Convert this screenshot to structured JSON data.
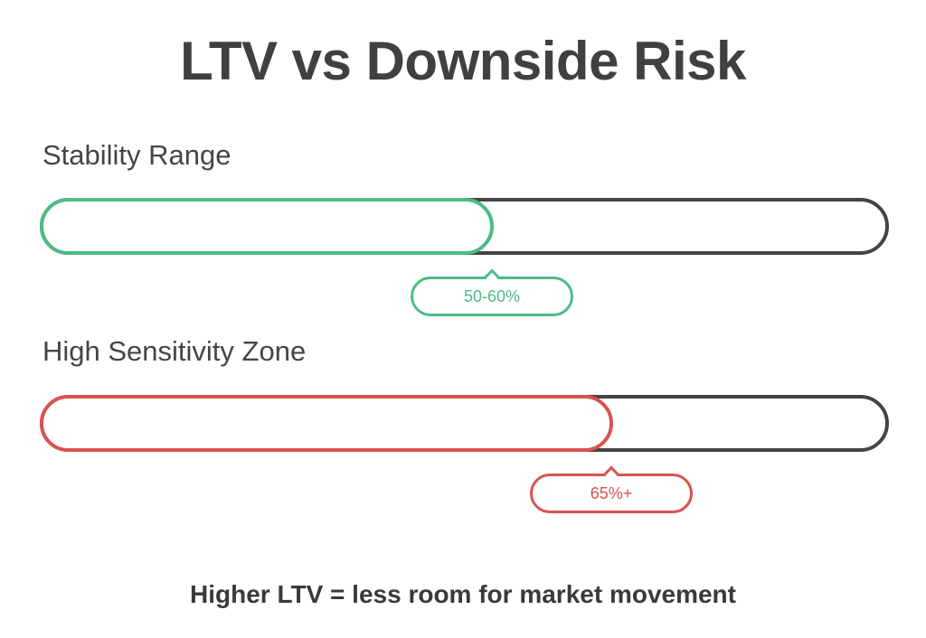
{
  "title": "LTV vs Downside Risk",
  "bars": [
    {
      "label": "Stability Range",
      "callout": "50-60%",
      "fill_fraction": 0.535,
      "color": "#4cbb87"
    },
    {
      "label": "High Sensitivity Zone",
      "callout": "65%+",
      "fill_fraction": 0.675,
      "color": "#d9534f"
    }
  ],
  "footer": "Higher LTV = less room for market movement",
  "colors": {
    "track": "#444444",
    "text": "#404040",
    "green": "#4cbb87",
    "red": "#d9534f"
  }
}
